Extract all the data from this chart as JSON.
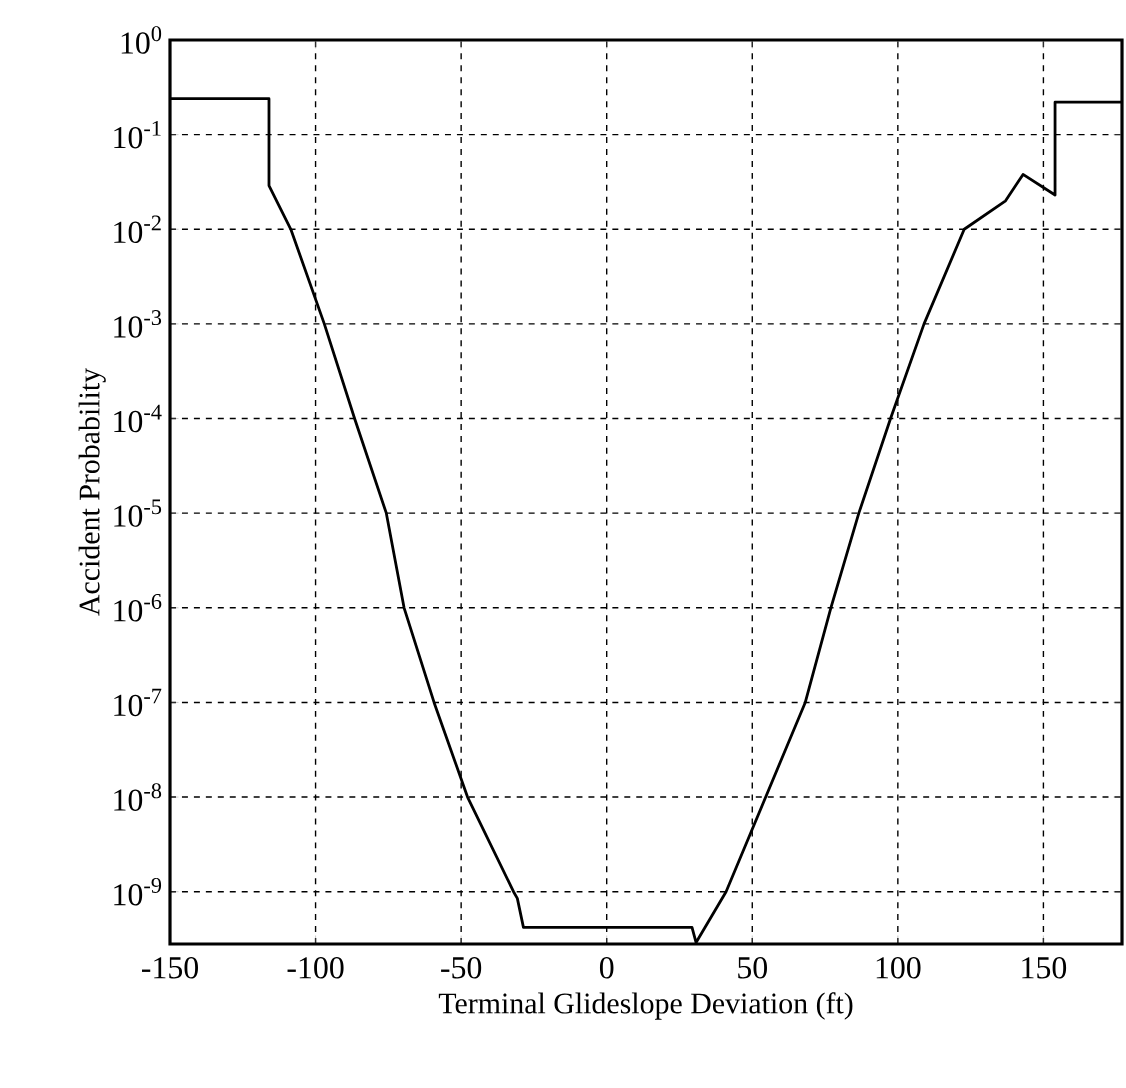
{
  "chart_data": {
    "type": "line",
    "xlabel": "Terminal Glideslope Deviation (ft)",
    "ylabel": "Accident Probability",
    "log": "y",
    "grid": true,
    "marker": "none",
    "line_style": "solid",
    "color": "#000000",
    "xlim": [
      -150,
      177
    ],
    "xticks": [
      -150,
      -100,
      -50,
      0,
      50,
      100,
      150
    ],
    "ylim": [
      2.8e-10,
      1
    ],
    "yticks": [
      {
        "value": 1,
        "label": "10$^{0}$"
      },
      {
        "value": 0.1,
        "label": "10$^{-1}$"
      },
      {
        "value": 0.01,
        "label": "10$^{-2}$"
      },
      {
        "value": 0.001,
        "label": "10$^{-3}$"
      },
      {
        "value": 0.0001,
        "label": "10$^{-4}$"
      },
      {
        "value": 1e-05,
        "label": "10$^{-5}$"
      },
      {
        "value": 1e-06,
        "label": "10$^{-6}$"
      },
      {
        "value": 1e-07,
        "label": "10$^{-7}$"
      },
      {
        "value": 1e-08,
        "label": "10$^{-8}$"
      },
      {
        "value": 1e-09,
        "label": "10$^{-9}$"
      }
    ],
    "x": [
      -150,
      -116,
      -116,
      -108.5,
      -97,
      -86.6,
      -75.7,
      -69.6,
      -59.3,
      -47.8,
      -32,
      -30.7,
      -28.6,
      29.3,
      30.7,
      41,
      54.6,
      68.2,
      77,
      86.6,
      97.5,
      109,
      122.8,
      137,
      143,
      154,
      154,
      177
    ],
    "values": [
      0.24,
      0.24,
      0.029,
      0.01,
      0.001,
      0.0001,
      1e-05,
      1e-06,
      1e-07,
      1e-08,
      1e-09,
      8.5e-10,
      4.2e-10,
      4.2e-10,
      2.9e-10,
      1e-09,
      1e-08,
      1e-07,
      1e-06,
      1e-05,
      0.0001,
      0.001,
      0.01,
      0.02,
      0.038,
      0.023,
      0.22,
      0.22
    ]
  }
}
